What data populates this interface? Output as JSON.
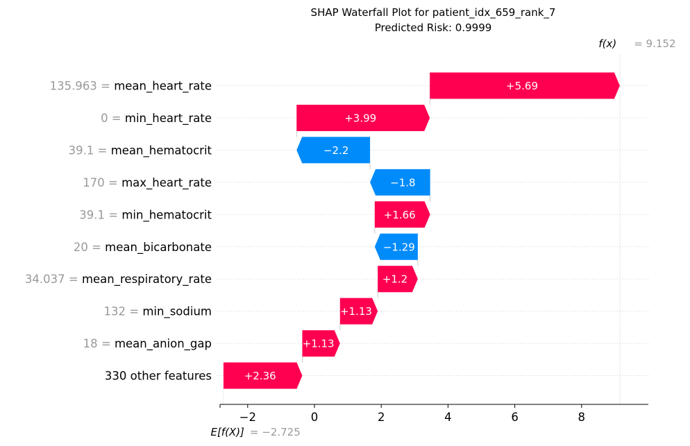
{
  "chart_data": {
    "type": "waterfall",
    "title_line1": "SHAP Waterfall Plot for patient_idx_659_rank_7",
    "title_line2": "Predicted Risk: 0.9999",
    "base_value": -2.725,
    "base_value_label": "E[f(X)]",
    "base_value_text": "= −2.725",
    "final_value": 9.152,
    "final_value_label": "f(x)",
    "final_value_text": "= 9.152",
    "xlim": [
      -2.8,
      9.7
    ],
    "xticks": [
      -2,
      0,
      2,
      4,
      6,
      8
    ],
    "xtick_labels": [
      "−2",
      "0",
      "2",
      "4",
      "6",
      "8"
    ],
    "positive_color": "#ff0051",
    "negative_color": "#008bfb",
    "features": [
      {
        "value": "135.963",
        "name": "mean_heart_rate",
        "shap": 5.69,
        "label": "+5.69"
      },
      {
        "value": "0",
        "name": "min_heart_rate",
        "shap": 3.99,
        "label": "+3.99"
      },
      {
        "value": "39.1",
        "name": "mean_hematocrit",
        "shap": -2.2,
        "label": "−2.2"
      },
      {
        "value": "170",
        "name": "max_heart_rate",
        "shap": -1.8,
        "label": "−1.8"
      },
      {
        "value": "39.1",
        "name": "min_hematocrit",
        "shap": 1.66,
        "label": "+1.66"
      },
      {
        "value": "20",
        "name": "mean_bicarbonate",
        "shap": -1.29,
        "label": "−1.29"
      },
      {
        "value": "34.037",
        "name": "mean_respiratory_rate",
        "shap": 1.2,
        "label": "+1.2"
      },
      {
        "value": "132",
        "name": "min_sodium",
        "shap": 1.13,
        "label": "+1.13"
      },
      {
        "value": "18",
        "name": "mean_anion_gap",
        "shap": 1.13,
        "label": "+1.13"
      },
      {
        "value": "",
        "name": "330 other features",
        "shap": 2.36,
        "label": "+2.36"
      }
    ]
  }
}
